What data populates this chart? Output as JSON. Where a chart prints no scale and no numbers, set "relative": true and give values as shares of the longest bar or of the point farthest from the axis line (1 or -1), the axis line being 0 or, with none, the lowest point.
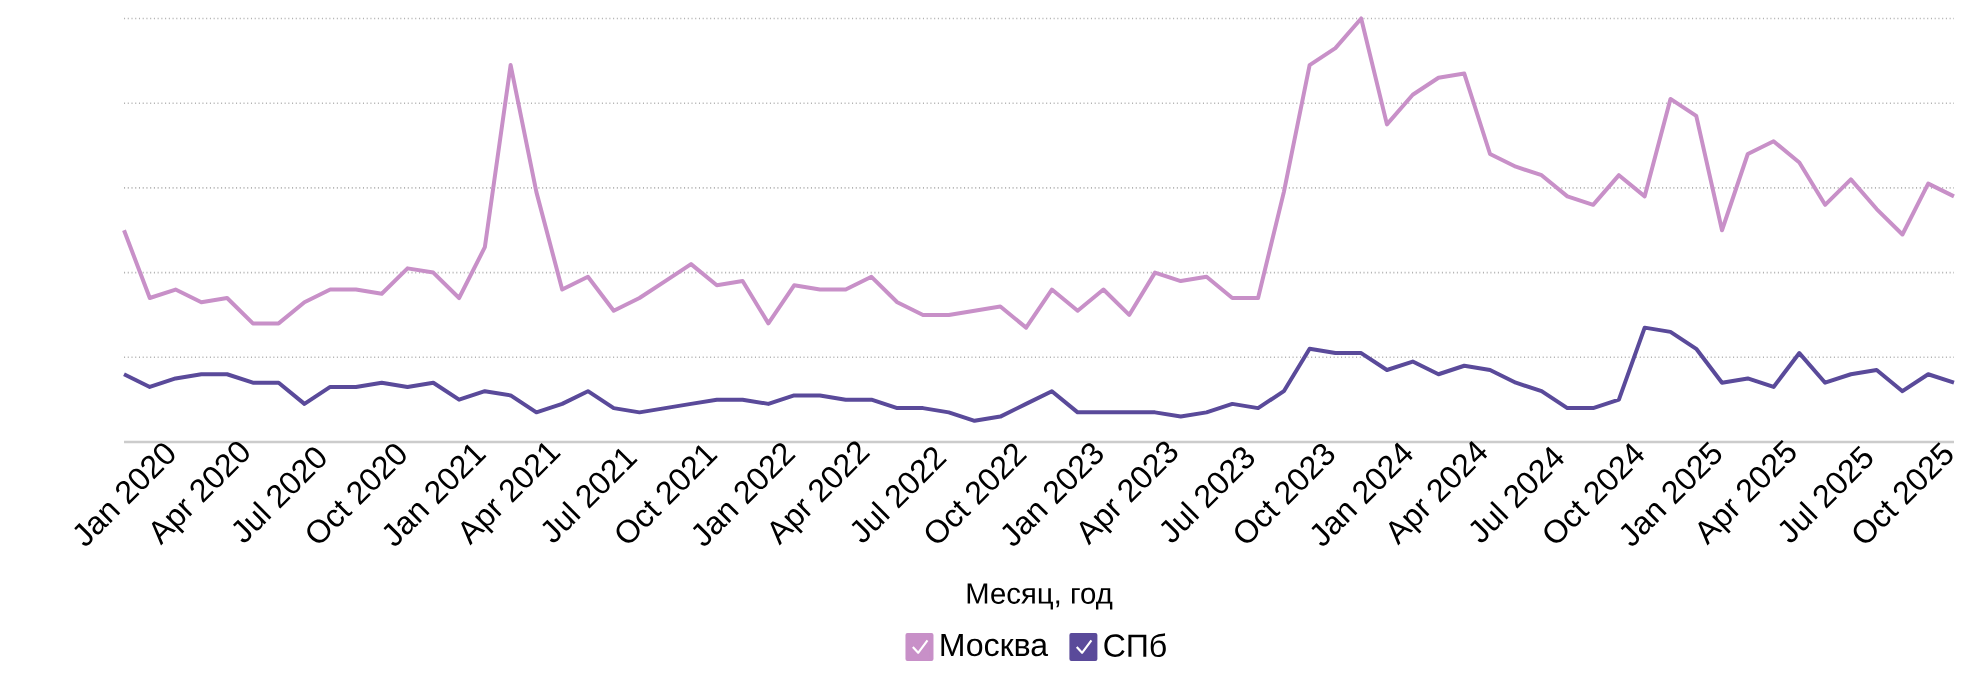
{
  "chart_data": {
    "type": "line",
    "xlabel": "Месяц, год",
    "relative": true,
    "grid": "y",
    "legend": "bottom",
    "marker": "none",
    "line_style": "solid",
    "categories": [
      "Jan 2020",
      null,
      null,
      "Apr 2020",
      null,
      null,
      "Jul 2020",
      null,
      null,
      "Oct 2020",
      null,
      null,
      "Jan 2021",
      null,
      null,
      "Apr 2021",
      null,
      null,
      "Jul 2021",
      null,
      null,
      "Oct 2021",
      null,
      null,
      "Jan 2022",
      null,
      null,
      "Apr 2022",
      null,
      null,
      "Jul 2022",
      null,
      null,
      "Oct 2022",
      null,
      null,
      "Jan 2023",
      null,
      null,
      "Apr 2023",
      null,
      null,
      "Jul 2023",
      null,
      null,
      "Oct 2023",
      null,
      null,
      "Jan 2024",
      null,
      null,
      "Apr 2024",
      null,
      null,
      "Jul 2024",
      null,
      null,
      "Oct 2024",
      null,
      null,
      "Jan 2025",
      null,
      null,
      "Apr 2025",
      null,
      null,
      "Jul 2025",
      null,
      null,
      "Oct 2025",
      null,
      null
    ],
    "series": [
      {
        "name": "Москва",
        "color": "#c890c8",
        "values": [
          0.5,
          0.34,
          0.36,
          0.33,
          0.34,
          0.28,
          0.28,
          0.33,
          0.36,
          0.36,
          0.35,
          0.41,
          0.4,
          0.34,
          0.46,
          0.89,
          0.59,
          0.36,
          0.39,
          0.31,
          0.34,
          0.38,
          0.42,
          0.37,
          0.38,
          0.28,
          0.37,
          0.36,
          0.36,
          0.39,
          0.33,
          0.3,
          0.3,
          0.31,
          0.32,
          0.27,
          0.36,
          0.31,
          0.36,
          0.3,
          0.4,
          0.38,
          0.39,
          0.34,
          0.34,
          0.59,
          0.89,
          0.93,
          1.0,
          0.75,
          0.82,
          0.86,
          0.87,
          0.68,
          0.65,
          0.63,
          0.58,
          0.56,
          0.63,
          0.58,
          0.81,
          0.77,
          0.5,
          0.68,
          0.71,
          0.66,
          0.56,
          0.62,
          0.55,
          0.49,
          0.61,
          0.58
        ]
      },
      {
        "name": "СПб",
        "color": "#5a4a9a",
        "values": [
          0.16,
          0.13,
          0.15,
          0.16,
          0.16,
          0.14,
          0.14,
          0.09,
          0.13,
          0.13,
          0.14,
          0.13,
          0.14,
          0.1,
          0.12,
          0.11,
          0.07,
          0.09,
          0.12,
          0.08,
          0.07,
          0.08,
          0.09,
          0.1,
          0.1,
          0.09,
          0.11,
          0.11,
          0.1,
          0.1,
          0.08,
          0.08,
          0.07,
          0.05,
          0.06,
          0.09,
          0.12,
          0.07,
          0.07,
          0.07,
          0.07,
          0.06,
          0.07,
          0.09,
          0.08,
          0.12,
          0.22,
          0.21,
          0.21,
          0.17,
          0.19,
          0.16,
          0.18,
          0.17,
          0.14,
          0.12,
          0.08,
          0.08,
          0.1,
          0.27,
          0.26,
          0.22,
          0.14,
          0.15,
          0.13,
          0.21,
          0.14,
          0.16,
          0.17,
          0.12,
          0.16,
          0.14
        ]
      }
    ]
  }
}
